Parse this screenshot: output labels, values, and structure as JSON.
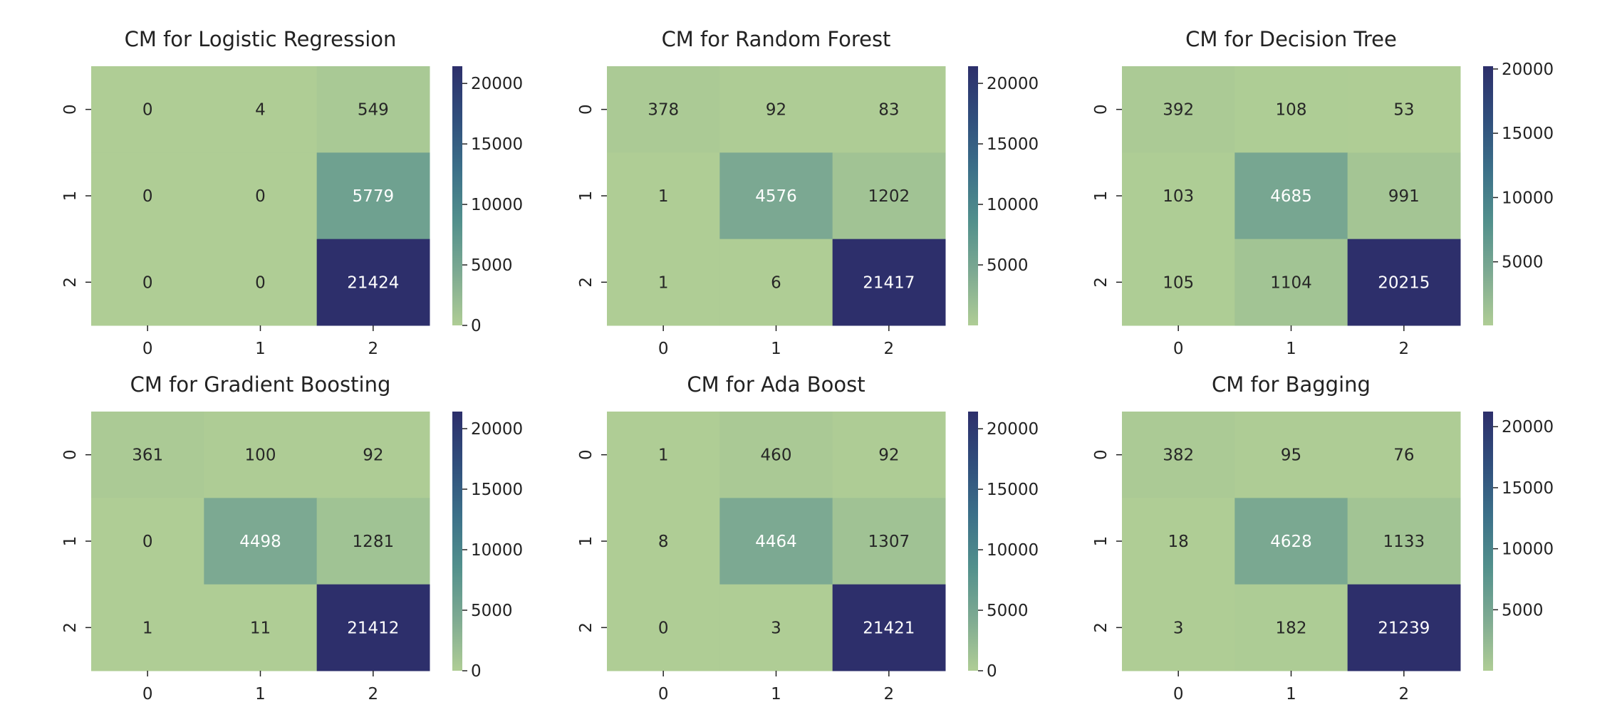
{
  "chart_data": [
    {
      "type": "heatmap",
      "title": "CM for Logistic Regression",
      "x_ticks": [
        "0",
        "1",
        "2"
      ],
      "y_ticks": [
        "0",
        "1",
        "2"
      ],
      "values": [
        [
          0,
          4,
          549
        ],
        [
          0,
          0,
          5779
        ],
        [
          0,
          0,
          21424
        ]
      ],
      "colorbar_ticks": [
        0,
        5000,
        10000,
        15000,
        20000
      ],
      "vmin": 0,
      "vmax": 21424
    },
    {
      "type": "heatmap",
      "title": "CM for Random Forest",
      "x_ticks": [
        "0",
        "1",
        "2"
      ],
      "y_ticks": [
        "0",
        "1",
        "2"
      ],
      "values": [
        [
          378,
          92,
          83
        ],
        [
          1,
          4576,
          1202
        ],
        [
          1,
          6,
          21417
        ]
      ],
      "colorbar_ticks": [
        5000,
        10000,
        15000,
        20000
      ],
      "vmin": 1,
      "vmax": 21417
    },
    {
      "type": "heatmap",
      "title": "CM for Decision Tree",
      "x_ticks": [
        "0",
        "1",
        "2"
      ],
      "y_ticks": [
        "0",
        "1",
        "2"
      ],
      "values": [
        [
          392,
          108,
          53
        ],
        [
          103,
          4685,
          991
        ],
        [
          105,
          1104,
          20215
        ]
      ],
      "colorbar_ticks": [
        5000,
        10000,
        15000,
        20000
      ],
      "vmin": 53,
      "vmax": 20215
    },
    {
      "type": "heatmap",
      "title": "CM for Gradient Boosting",
      "x_ticks": [
        "0",
        "1",
        "2"
      ],
      "y_ticks": [
        "0",
        "1",
        "2"
      ],
      "values": [
        [
          361,
          100,
          92
        ],
        [
          0,
          4498,
          1281
        ],
        [
          1,
          11,
          21412
        ]
      ],
      "colorbar_ticks": [
        0,
        5000,
        10000,
        15000,
        20000
      ],
      "vmin": 0,
      "vmax": 21412
    },
    {
      "type": "heatmap",
      "title": "CM for Ada Boost",
      "x_ticks": [
        "0",
        "1",
        "2"
      ],
      "y_ticks": [
        "0",
        "1",
        "2"
      ],
      "values": [
        [
          1,
          460,
          92
        ],
        [
          8,
          4464,
          1307
        ],
        [
          0,
          3,
          21421
        ]
      ],
      "colorbar_ticks": [
        0,
        5000,
        10000,
        15000,
        20000
      ],
      "vmin": 0,
      "vmax": 21421
    },
    {
      "type": "heatmap",
      "title": "CM for Bagging",
      "x_ticks": [
        "0",
        "1",
        "2"
      ],
      "y_ticks": [
        "0",
        "1",
        "2"
      ],
      "values": [
        [
          382,
          95,
          76
        ],
        [
          18,
          4628,
          1133
        ],
        [
          3,
          182,
          21239
        ]
      ],
      "colorbar_ticks": [
        5000,
        10000,
        15000,
        20000
      ],
      "vmin": 3,
      "vmax": 21239
    }
  ],
  "colormap": {
    "name": "crest",
    "low": "#afcd95",
    "high": "#2d2f6b"
  }
}
